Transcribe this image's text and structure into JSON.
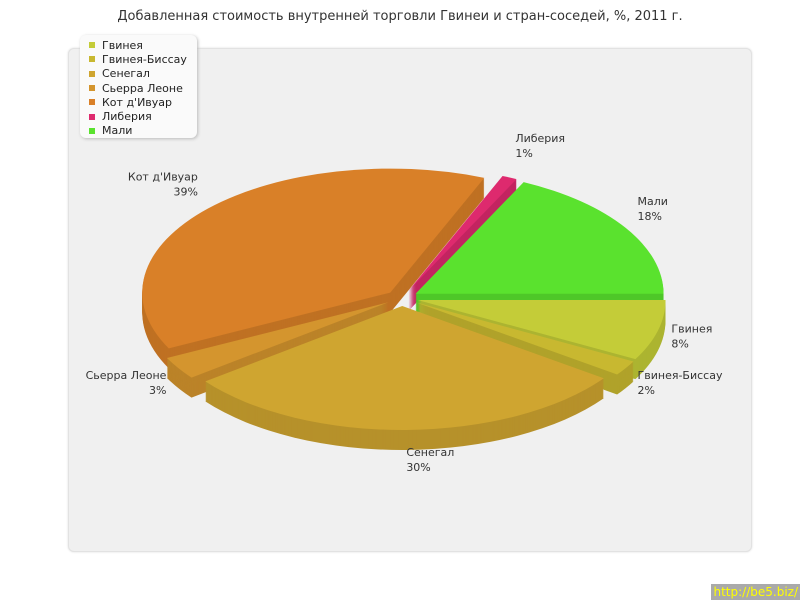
{
  "chart_data": {
    "type": "pie",
    "title": "Добавленная стоимость внутренней торговли Гвинеи и стран-соседей, %, 2011 г.",
    "three_d": true,
    "exploded": true,
    "legend_position": "top-left",
    "slices": [
      {
        "label": "Гвинея",
        "value": 8,
        "pct": "8%",
        "color": "#c4cc38"
      },
      {
        "label": "Гвинея-Биссау",
        "value": 2,
        "pct": "2%",
        "color": "#c8b830"
      },
      {
        "label": "Сенегал",
        "value": 30,
        "pct": "30%",
        "color": "#cfa530"
      },
      {
        "label": "Сьерра Леоне",
        "value": 3,
        "pct": "3%",
        "color": "#d4952e"
      },
      {
        "label": "Кот д'Ивуар",
        "value": 39,
        "pct": "39%",
        "color": "#d98028"
      },
      {
        "label": "Либерия",
        "value": 1,
        "pct": "1%",
        "color": "#de2a6e"
      },
      {
        "label": "Мали",
        "value": 18,
        "pct": "18%",
        "color": "#5ae22e"
      }
    ]
  },
  "watermark": "http://be5.biz/"
}
